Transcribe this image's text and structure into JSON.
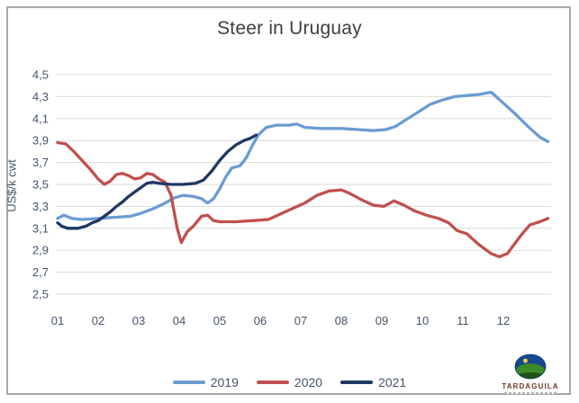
{
  "window": {
    "background": "#ffffff",
    "frame_border_color": "#a9a9a9"
  },
  "logo": {
    "name": "TARDAGUILA"
  },
  "chart_data": {
    "type": "line",
    "title": "Steer in Uruguay",
    "xlabel": "",
    "ylabel": "US$/k cwt",
    "ylim": [
      2.5,
      4.5
    ],
    "xlim": [
      0.95,
      13.2
    ],
    "grid": "horizontal",
    "gridline_color": "#d9d9d9",
    "tick_text_color": "#44546A",
    "legend_position": "bottom",
    "yticks": [
      {
        "v": 4.5,
        "label": "4,5"
      },
      {
        "v": 4.3,
        "label": "4,3"
      },
      {
        "v": 4.1,
        "label": "4,1"
      },
      {
        "v": 3.9,
        "label": "3,9"
      },
      {
        "v": 3.7,
        "label": "3,7"
      },
      {
        "v": 3.5,
        "label": "3,5"
      },
      {
        "v": 3.3,
        "label": "3,3"
      },
      {
        "v": 3.1,
        "label": "3,1"
      },
      {
        "v": 2.9,
        "label": "2,9"
      },
      {
        "v": 2.7,
        "label": "2,7"
      },
      {
        "v": 2.5,
        "label": "2,5"
      }
    ],
    "xticks": [
      {
        "v": 1,
        "label": "01"
      },
      {
        "v": 2,
        "label": "02"
      },
      {
        "v": 3,
        "label": "03"
      },
      {
        "v": 4,
        "label": "04"
      },
      {
        "v": 5,
        "label": "05"
      },
      {
        "v": 6,
        "label": "06"
      },
      {
        "v": 7,
        "label": "07"
      },
      {
        "v": 8,
        "label": "08"
      },
      {
        "v": 9,
        "label": "09"
      },
      {
        "v": 10,
        "label": "10"
      },
      {
        "v": 11,
        "label": "11"
      },
      {
        "v": 12,
        "label": "12"
      }
    ],
    "series": [
      {
        "name": "2019",
        "color": "#6B9CD2",
        "x": [
          1.0,
          1.15,
          1.35,
          1.6,
          2.0,
          2.4,
          2.8,
          3.0,
          3.3,
          3.6,
          3.9,
          4.1,
          4.35,
          4.55,
          4.7,
          4.85,
          5.0,
          5.15,
          5.3,
          5.5,
          5.65,
          5.8,
          5.95,
          6.15,
          6.4,
          6.7,
          6.9,
          7.1,
          7.5,
          8.0,
          8.4,
          8.8,
          9.1,
          9.35,
          9.6,
          9.9,
          10.2,
          10.5,
          10.8,
          11.1,
          11.4,
          11.7,
          12.0,
          12.3,
          12.6,
          12.9,
          13.1
        ],
        "y": [
          3.19,
          3.22,
          3.19,
          3.18,
          3.19,
          3.2,
          3.21,
          3.23,
          3.27,
          3.32,
          3.38,
          3.4,
          3.39,
          3.37,
          3.33,
          3.37,
          3.46,
          3.57,
          3.65,
          3.67,
          3.74,
          3.85,
          3.95,
          4.02,
          4.04,
          4.04,
          4.05,
          4.02,
          4.01,
          4.01,
          4.0,
          3.99,
          4.0,
          4.03,
          4.09,
          4.16,
          4.23,
          4.27,
          4.3,
          4.31,
          4.32,
          4.34,
          4.24,
          4.14,
          4.03,
          3.93,
          3.89
        ]
      },
      {
        "name": "2020",
        "color": "#C0504D",
        "x": [
          1.0,
          1.2,
          1.4,
          1.6,
          1.8,
          2.0,
          2.15,
          2.3,
          2.45,
          2.6,
          2.75,
          2.9,
          3.05,
          3.2,
          3.35,
          3.5,
          3.65,
          3.8,
          3.95,
          4.05,
          4.2,
          4.35,
          4.55,
          4.7,
          4.85,
          5.0,
          5.4,
          5.8,
          6.2,
          6.5,
          6.8,
          7.1,
          7.4,
          7.7,
          8.0,
          8.2,
          8.5,
          8.8,
          9.05,
          9.3,
          9.55,
          9.8,
          10.1,
          10.4,
          10.65,
          10.85,
          11.1,
          11.4,
          11.7,
          11.9,
          12.1,
          12.4,
          12.65,
          12.9,
          13.1
        ],
        "y": [
          3.88,
          3.87,
          3.8,
          3.72,
          3.64,
          3.55,
          3.5,
          3.53,
          3.59,
          3.6,
          3.58,
          3.55,
          3.56,
          3.6,
          3.59,
          3.55,
          3.52,
          3.4,
          3.1,
          2.97,
          3.07,
          3.12,
          3.21,
          3.22,
          3.17,
          3.16,
          3.16,
          3.17,
          3.18,
          3.23,
          3.28,
          3.33,
          3.4,
          3.44,
          3.45,
          3.42,
          3.36,
          3.31,
          3.3,
          3.35,
          3.31,
          3.26,
          3.22,
          3.19,
          3.15,
          3.08,
          3.05,
          2.95,
          2.87,
          2.84,
          2.87,
          3.02,
          3.13,
          3.16,
          3.19
        ]
      },
      {
        "name": "2021",
        "color": "#1F3864",
        "x": [
          1.0,
          1.1,
          1.25,
          1.5,
          1.7,
          1.85,
          2.0,
          2.15,
          2.3,
          2.45,
          2.6,
          2.75,
          2.9,
          3.05,
          3.2,
          3.35,
          3.5,
          3.8,
          4.1,
          4.4,
          4.6,
          4.8,
          5.0,
          5.2,
          5.4,
          5.6,
          5.75,
          5.9
        ],
        "y": [
          3.15,
          3.12,
          3.1,
          3.1,
          3.12,
          3.15,
          3.17,
          3.21,
          3.25,
          3.3,
          3.34,
          3.39,
          3.43,
          3.47,
          3.51,
          3.52,
          3.51,
          3.5,
          3.5,
          3.51,
          3.54,
          3.62,
          3.72,
          3.8,
          3.86,
          3.9,
          3.92,
          3.95
        ]
      }
    ]
  }
}
